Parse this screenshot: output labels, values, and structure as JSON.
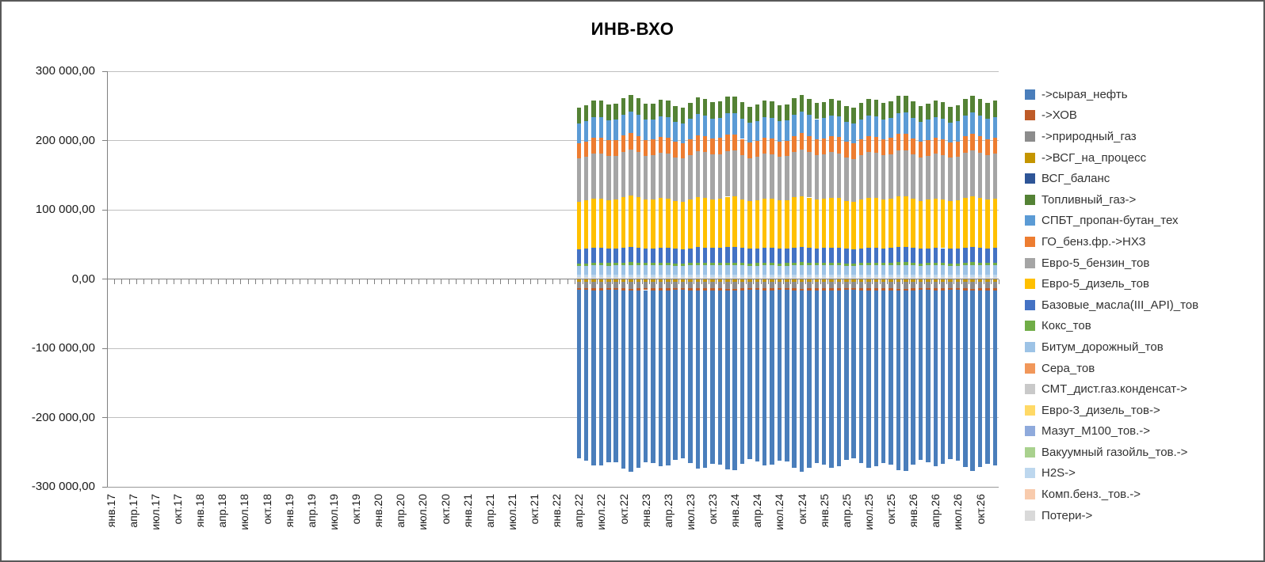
{
  "window": {
    "title": "ИНВ-ВХО"
  },
  "chart_data": {
    "type": "stacked-bar",
    "title": "ИНВ-ВХО",
    "grid": true,
    "legend_position": "right",
    "y_axis": {
      "min": -300000,
      "max": 300000,
      "step": 100000,
      "number_format": "ru space-thousands, comma decimals",
      "tick_labels": [
        "300 000,00",
        "200 000,00",
        "100 000,00",
        "0,00",
        "-100 000,00",
        "-200 000,00",
        "-300 000,00"
      ]
    },
    "x_axis": {
      "unit": "month",
      "first_month": "янв.17",
      "last_month": "дек.26",
      "months_total": 120,
      "tick_label_interval_months": 3,
      "tick_labels": [
        "янв.17",
        "апр.17",
        "июл.17",
        "окт.17",
        "янв.18",
        "апр.18",
        "июл.18",
        "окт.18",
        "янв.19",
        "апр.19",
        "июл.19",
        "окт.19",
        "янв.20",
        "апр.20",
        "июл.20",
        "окт.20",
        "янв.21",
        "апр.21",
        "июл.21",
        "окт.21",
        "янв.22",
        "апр.22",
        "июл.22",
        "окт.22",
        "янв.23",
        "апр.23",
        "июл.23",
        "окт.23",
        "янв.24",
        "апр.24",
        "июл.24",
        "окт.24",
        "янв.25",
        "апр.25",
        "июл.25",
        "окт.25",
        "янв.26",
        "апр.26",
        "июл.26",
        "окт.26"
      ]
    },
    "bars": {
      "first_bar_month": "апр.22",
      "first_bar_month_index": 63,
      "last_bar_month_index": 119,
      "bar_count": 57,
      "note": "no data plotted before апр.22; monthly stacked columns of near-constant height, positive total ≈ +256 000, negative total ≈ -268 000"
    },
    "series": [
      {
        "name": "->сырая_нефть",
        "color": "#4A7EBB",
        "monthly_value": -252000
      },
      {
        "name": "->ХОВ",
        "color": "#BE5B28",
        "monthly_value": -2800
      },
      {
        "name": "->природный_газ",
        "color": "#8C8C8C",
        "monthly_value": -9800
      },
      {
        "name": "->ВСГ_на_процесс",
        "color": "#C49500",
        "monthly_value": -3600
      },
      {
        "name": "ВСГ_баланс",
        "color": "#2E5597",
        "monthly_value": 0
      },
      {
        "name": "Топливный_газ->",
        "color": "#548235",
        "monthly_value": 23500
      },
      {
        "name": "СПБТ_пропан-бутан_тех",
        "color": "#5B9BD5",
        "monthly_value": 29500
      },
      {
        "name": "ГО_бенз.фр.->НХЗ",
        "color": "#ED7D31",
        "monthly_value": 23000
      },
      {
        "name": "Евро-5_бензин_тов",
        "color": "#A5A5A5",
        "monthly_value": 64500
      },
      {
        "name": "Евро-5_дизель_тов",
        "color": "#FFC000",
        "monthly_value": 71000
      },
      {
        "name": "Базовые_масла(III_API)_тов",
        "color": "#4472C4",
        "monthly_value": 21500
      },
      {
        "name": "Кокс_тов",
        "color": "#70AD47",
        "monthly_value": 3600
      },
      {
        "name": "Битум_дорожный_тов",
        "color": "#9DC3E6",
        "monthly_value": 13500
      },
      {
        "name": "Сера_тов",
        "color": "#F1975A",
        "monthly_value": 0
      },
      {
        "name": "СМТ_дист.газ.конденсат->",
        "color": "#C9C9C9",
        "monthly_value": 0
      },
      {
        "name": "Евро-3_дизель_тов->",
        "color": "#FFD966",
        "monthly_value": 0
      },
      {
        "name": "Мазут_М100_тов.->",
        "color": "#8FAADC",
        "monthly_value": 0
      },
      {
        "name": "Вакуумный газойль_тов.->",
        "color": "#A9D18E",
        "monthly_value": 0
      },
      {
        "name": "H2S->",
        "color": "#BDD7EE",
        "monthly_value": 3600
      },
      {
        "name": "Комп.бенз._тов.->",
        "color": "#F8CBAD",
        "monthly_value": 0
      },
      {
        "name": "Потери->",
        "color": "#D9D9D9",
        "monthly_value": 2600
      }
    ],
    "stacking_note": "segments stack outward from zero axis in reverse series order (last legend series closest to axis), negatives mirrored below zero"
  }
}
